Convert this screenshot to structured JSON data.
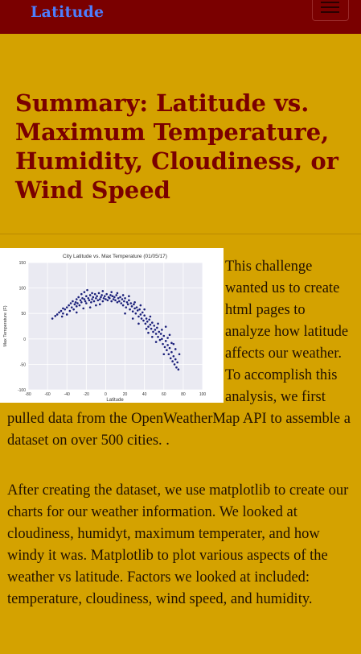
{
  "nav": {
    "brand": "Latitude"
  },
  "page": {
    "title": "Summary: Latitude vs. Maximum Temperature, Humidity, Cloudiness, or Wind Speed",
    "paragraph1_lines": [
      "This challenge",
      "wanted us to create",
      "html pages to",
      "analyze how latitude",
      "affects our weather.",
      "To accomplish this",
      "analysis, we first"
    ],
    "paragraph1_continued": "pulled data from the OpenWeatherMap API to assemble a dataset on over 500 cities. .",
    "paragraph2": "After creating the dataset, we use matplotlib to create our charts for our weather information. We looked at cloudiness, humidyt, maximum temperater, and how windy it was. Matplotlib to plot various aspects of the weather vs latitude. Factors we looked at included: temperature, cloudiness, wind speed, and humidity."
  },
  "chart_data": {
    "type": "scatter",
    "title": "City Latitude vs. Max Temperature (01/05/17)",
    "xlabel": "Latitude",
    "ylabel": "Max Temperature (F)",
    "xlim": [
      -80,
      100
    ],
    "ylim": [
      -100,
      150
    ],
    "xticks": [
      -80,
      -60,
      -40,
      -20,
      0,
      20,
      40,
      60,
      80,
      100
    ],
    "yticks": [
      -100,
      -50,
      0,
      50,
      100,
      150
    ],
    "point_color": "#1a1f7a",
    "series": [
      {
        "name": "cities",
        "points": [
          [
            -55,
            40
          ],
          [
            -52,
            45
          ],
          [
            -50,
            48
          ],
          [
            -48,
            52
          ],
          [
            -46,
            55
          ],
          [
            -45,
            44
          ],
          [
            -44,
            60
          ],
          [
            -42,
            58
          ],
          [
            -40,
            62
          ],
          [
            -40,
            48
          ],
          [
            -38,
            66
          ],
          [
            -37,
            55
          ],
          [
            -36,
            70
          ],
          [
            -35,
            62
          ],
          [
            -34,
            74
          ],
          [
            -33,
            58
          ],
          [
            -32,
            68
          ],
          [
            -31,
            72
          ],
          [
            -30,
            78
          ],
          [
            -30,
            64
          ],
          [
            -29,
            70
          ],
          [
            -28,
            82
          ],
          [
            -27,
            66
          ],
          [
            -26,
            76
          ],
          [
            -25,
            88
          ],
          [
            -25,
            72
          ],
          [
            -24,
            80
          ],
          [
            -23,
            60
          ],
          [
            -22,
            92
          ],
          [
            -22,
            78
          ],
          [
            -21,
            74
          ],
          [
            -20,
            84
          ],
          [
            -20,
            70
          ],
          [
            -19,
            96
          ],
          [
            -18,
            80
          ],
          [
            -17,
            76
          ],
          [
            -16,
            86
          ],
          [
            -15,
            72
          ],
          [
            -14,
            90
          ],
          [
            -14,
            78
          ],
          [
            -13,
            82
          ],
          [
            -12,
            74
          ],
          [
            -11,
            88
          ],
          [
            -10,
            80
          ],
          [
            -10,
            66
          ],
          [
            -9,
            84
          ],
          [
            -8,
            76
          ],
          [
            -7,
            90
          ],
          [
            -6,
            78
          ],
          [
            -5,
            82
          ],
          [
            -4,
            86
          ],
          [
            -3,
            74
          ],
          [
            -2,
            80
          ],
          [
            -1,
            84
          ],
          [
            0,
            78
          ],
          [
            1,
            88
          ],
          [
            2,
            76
          ],
          [
            3,
            82
          ],
          [
            4,
            80
          ],
          [
            5,
            86
          ],
          [
            6,
            74
          ],
          [
            7,
            84
          ],
          [
            8,
            78
          ],
          [
            9,
            82
          ],
          [
            10,
            76
          ],
          [
            11,
            86
          ],
          [
            12,
            72
          ],
          [
            13,
            80
          ],
          [
            14,
            74
          ],
          [
            15,
            82
          ],
          [
            16,
            70
          ],
          [
            17,
            78
          ],
          [
            18,
            66
          ],
          [
            19,
            74
          ],
          [
            20,
            80
          ],
          [
            21,
            62
          ],
          [
            22,
            72
          ],
          [
            23,
            68
          ],
          [
            24,
            76
          ],
          [
            25,
            58
          ],
          [
            26,
            70
          ],
          [
            27,
            64
          ],
          [
            28,
            54
          ],
          [
            29,
            68
          ],
          [
            30,
            60
          ],
          [
            31,
            50
          ],
          [
            32,
            62
          ],
          [
            33,
            56
          ],
          [
            34,
            44
          ],
          [
            35,
            58
          ],
          [
            36,
            48
          ],
          [
            37,
            40
          ],
          [
            38,
            52
          ],
          [
            39,
            36
          ],
          [
            40,
            46
          ],
          [
            41,
            30
          ],
          [
            42,
            40
          ],
          [
            43,
            34
          ],
          [
            44,
            24
          ],
          [
            45,
            38
          ],
          [
            46,
            28
          ],
          [
            47,
            20
          ],
          [
            48,
            32
          ],
          [
            49,
            14
          ],
          [
            50,
            26
          ],
          [
            51,
            18
          ],
          [
            52,
            10
          ],
          [
            53,
            22
          ],
          [
            54,
            4
          ],
          [
            55,
            14
          ],
          [
            56,
            -2
          ],
          [
            57,
            10
          ],
          [
            58,
            0
          ],
          [
            59,
            -10
          ],
          [
            60,
            6
          ],
          [
            61,
            -16
          ],
          [
            62,
            -4
          ],
          [
            63,
            -22
          ],
          [
            64,
            -12
          ],
          [
            65,
            -30
          ],
          [
            66,
            -18
          ],
          [
            67,
            -38
          ],
          [
            68,
            -26
          ],
          [
            69,
            -44
          ],
          [
            70,
            -34
          ],
          [
            71,
            -50
          ],
          [
            72,
            -40
          ],
          [
            73,
            -56
          ],
          [
            74,
            -46
          ],
          [
            75,
            -60
          ],
          [
            68,
            -8
          ],
          [
            64,
            2
          ],
          [
            72,
            -20
          ],
          [
            58,
            18
          ],
          [
            54,
            30
          ],
          [
            46,
            44
          ],
          [
            40,
            58
          ],
          [
            36,
            66
          ],
          [
            30,
            72
          ],
          [
            24,
            84
          ],
          [
            18,
            86
          ],
          [
            -3,
            94
          ],
          [
            6,
            92
          ],
          [
            12,
            90
          ],
          [
            -16,
            62
          ],
          [
            -30,
            52
          ],
          [
            -44,
            50
          ],
          [
            -6,
            68
          ],
          [
            20,
            50
          ],
          [
            44,
            12
          ],
          [
            60,
            -30
          ],
          [
            66,
            8
          ],
          [
            70,
            -10
          ],
          [
            76,
            -30
          ],
          [
            62,
            24
          ],
          [
            48,
            4
          ],
          [
            52,
            -6
          ],
          [
            42,
            20
          ],
          [
            34,
            30
          ],
          [
            28,
            40
          ]
        ]
      }
    ]
  }
}
